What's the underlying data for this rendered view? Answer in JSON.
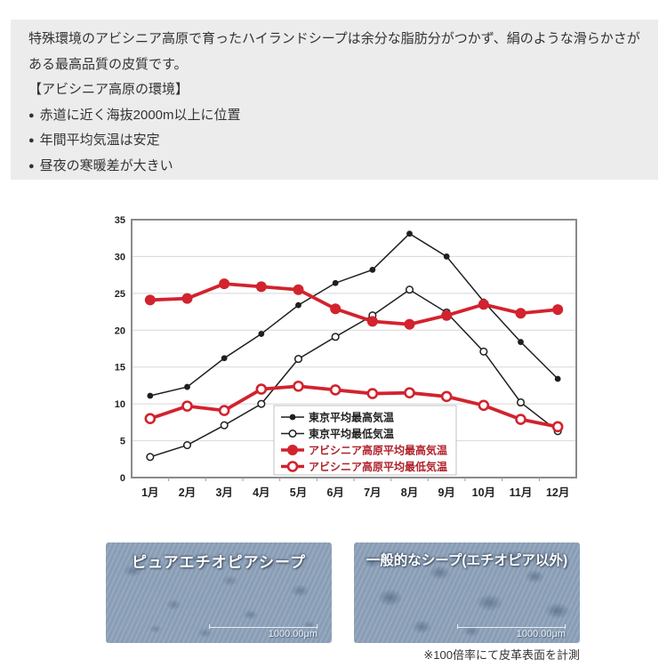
{
  "info": {
    "paragraph": "特殊環境のアビシニア高原で育ったハイランドシープは余分な脂肪分がつかず、絹のような滑らかさがある最高品質の皮質です。",
    "heading": "【アビシニア高原の環境】",
    "bullet_char": "●",
    "bullets": [
      {
        "text": "赤道に近く海抜2000m以上に位置"
      },
      {
        "text": "年間平均気温は安定"
      },
      {
        "text": "昼夜の寒暖差が大きい"
      }
    ]
  },
  "chart_data": {
    "type": "line",
    "title": "",
    "xlabel": "",
    "ylabel": "",
    "x_categories": [
      "1月",
      "2月",
      "3月",
      "4月",
      "5月",
      "6月",
      "7月",
      "8月",
      "9月",
      "10月",
      "11月",
      "12月"
    ],
    "ylim": [
      0,
      35
    ],
    "ytick_step": 5,
    "grid": "horizontal",
    "legend_position": "inside-bottom-center",
    "colors": {
      "tokyo": "#1f1f1f",
      "abyssinia": "#d2232e",
      "abyssinia_legend_text": "#b0202a",
      "grid": "#d8d8d8",
      "border": "#8a8a8a",
      "axis_text": "#222222"
    },
    "series": [
      {
        "name": "東京平均最高気温",
        "color": "#1f1f1f",
        "marker": "filled",
        "thick": false,
        "values": [
          11.1,
          12.3,
          16.2,
          19.5,
          23.4,
          26.4,
          28.2,
          33.1,
          30.0,
          23.9,
          18.4,
          13.4
        ]
      },
      {
        "name": "東京平均最低気温",
        "color": "#1f1f1f",
        "marker": "open",
        "thick": false,
        "values": [
          2.8,
          4.4,
          7.1,
          10.0,
          16.1,
          19.1,
          22.0,
          25.5,
          22.4,
          17.1,
          10.2,
          6.3
        ]
      },
      {
        "name": "アビシニア高原平均最高気温",
        "color": "#d2232e",
        "marker": "filled",
        "thick": true,
        "values": [
          24.1,
          24.3,
          26.3,
          25.9,
          25.5,
          22.9,
          21.2,
          20.8,
          22.0,
          23.5,
          22.3,
          22.8
        ]
      },
      {
        "name": "アビシニア高原平均最低気温",
        "color": "#d2232e",
        "marker": "open",
        "thick": true,
        "values": [
          8.0,
          9.7,
          9.1,
          12.0,
          12.4,
          11.9,
          11.4,
          11.5,
          11.0,
          9.8,
          7.9,
          6.9
        ]
      }
    ]
  },
  "samples": {
    "left_label": "ピュアエチオピアシープ",
    "right_label": "一般的なシープ(エチオピア以外)",
    "scale_text": "1000.00μm",
    "note": "※100倍率にて皮革表面を計測"
  }
}
